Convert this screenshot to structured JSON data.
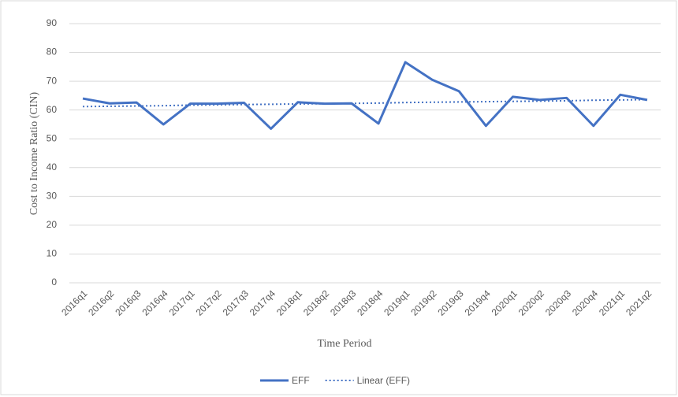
{
  "chart_data": {
    "type": "line",
    "x_label": "Time Period",
    "y_label": "Cost to Income Ratio (CIN)",
    "categories": [
      "2016q1",
      "2016q2",
      "2016q3",
      "2016q4",
      "2017q1",
      "2017q2",
      "2017q3",
      "2017q4",
      "2018q1",
      "2018q2",
      "2018q3",
      "2018q4",
      "2019q1",
      "2019q2",
      "2019q3",
      "2019q4",
      "2020q1",
      "2020q2",
      "2020q3",
      "2020q4",
      "2021q1",
      "2021q2"
    ],
    "series": [
      {
        "name": "EFF",
        "color": "#4472c4",
        "style": "solid",
        "values": [
          64,
          62.3,
          62.6,
          55,
          62.2,
          62.2,
          62.5,
          53.5,
          62.7,
          62.2,
          62.3,
          55.3,
          76.6,
          70.5,
          66.5,
          54.5,
          64.6,
          63.5,
          64.2,
          54.5,
          65.3,
          63.5
        ]
      },
      {
        "name": "Linear (EFF)",
        "color": "#4472c4",
        "style": "dotted",
        "values": [
          61.2,
          61.3,
          61.4,
          61.5,
          61.7,
          61.8,
          61.9,
          62.0,
          62.1,
          62.2,
          62.3,
          62.4,
          62.6,
          62.7,
          62.8,
          62.9,
          63.0,
          63.1,
          63.2,
          63.4,
          63.5,
          63.6
        ]
      }
    ],
    "ylim": [
      0,
      90
    ],
    "yticks": [
      0,
      10,
      20,
      30,
      40,
      50,
      60,
      70,
      80,
      90
    ],
    "grid": true,
    "legend": "bottom"
  }
}
